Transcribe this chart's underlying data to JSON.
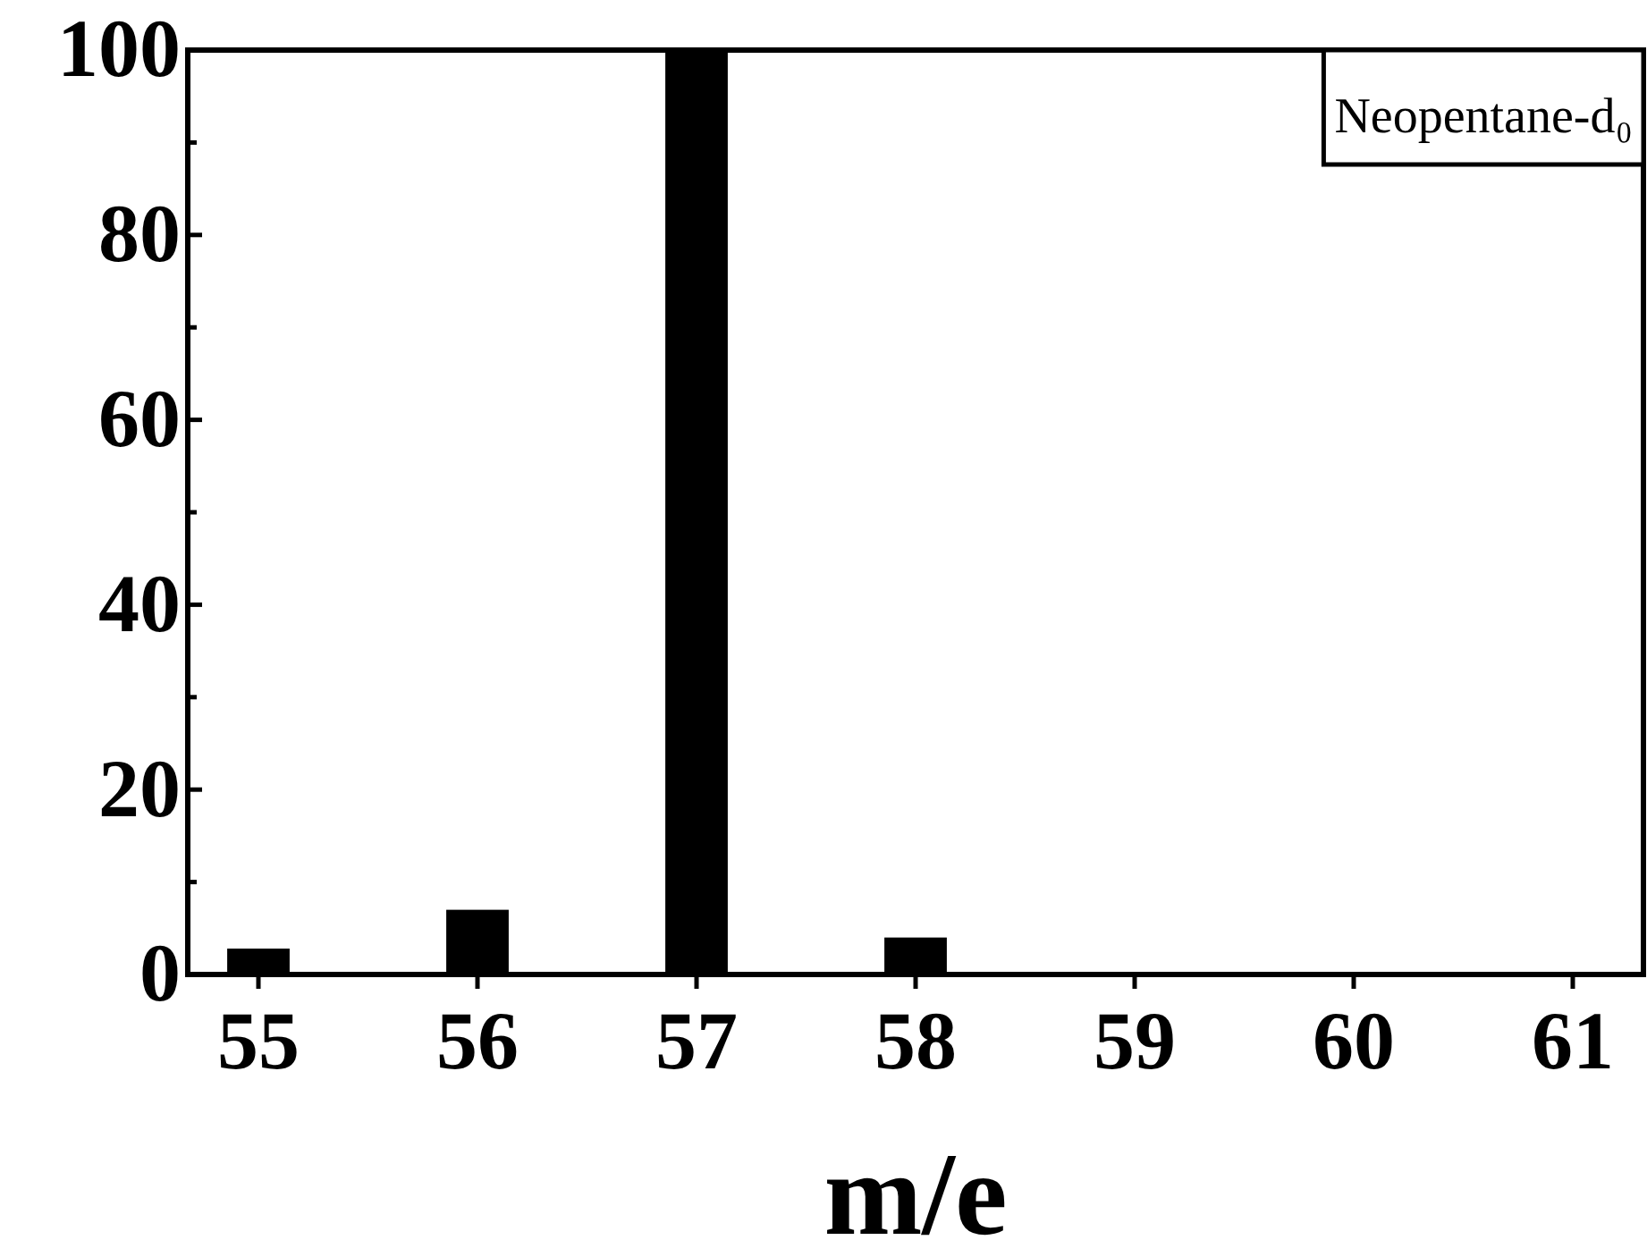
{
  "chart_data": {
    "type": "bar",
    "xlabel": "m/e",
    "categories": [
      "55",
      "56",
      "57",
      "58",
      "59",
      "60",
      "61"
    ],
    "values": [
      2.8,
      7,
      100,
      4,
      0,
      0,
      0
    ],
    "color": "#000000",
    "ylim": [
      0,
      100
    ],
    "yticks": [
      0,
      {
        "value": 10,
        "label": null
      },
      20,
      {
        "value": 30,
        "label": null
      },
      40,
      {
        "value": 50,
        "label": null
      },
      60,
      {
        "value": 70,
        "label": null
      },
      80,
      {
        "value": 90,
        "label": null
      },
      100
    ],
    "annotations": [
      "Neopentane-d₀"
    ]
  }
}
